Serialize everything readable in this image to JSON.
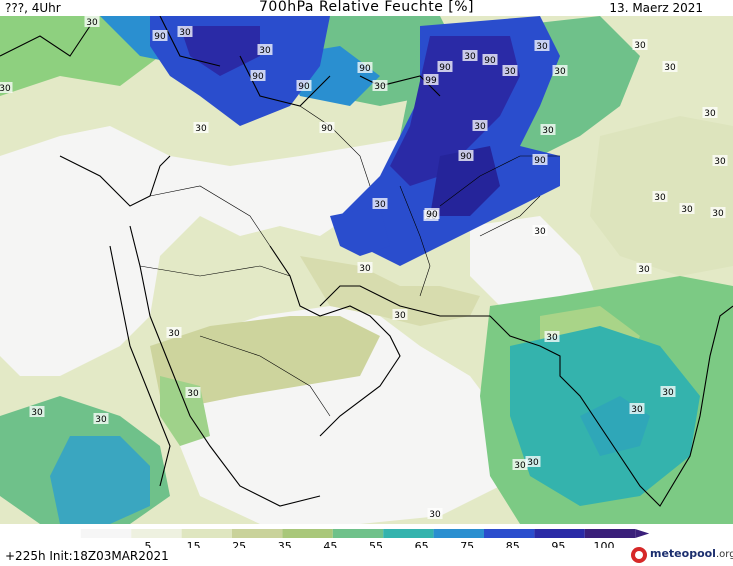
{
  "header": {
    "left": "???, 4Uhr",
    "title": "700hPa Relative Feuchte [%]",
    "date": "13. Maerz 2021"
  },
  "map": {
    "contour_labels": [
      "30",
      "90",
      "30",
      "30",
      "30",
      "90",
      "90",
      "90",
      "90",
      "30",
      "99",
      "90",
      "90",
      "30",
      "30",
      "30",
      "30",
      "90",
      "30",
      "90",
      "90",
      "30",
      "30",
      "30",
      "90",
      "30",
      "30",
      "30",
      "30",
      "30",
      "30",
      "30",
      "30",
      "30",
      "30",
      "30",
      "30",
      "30",
      "30",
      "30",
      "30",
      "30",
      "30",
      "30",
      "30",
      "30"
    ]
  },
  "colorbar": {
    "ticks": [
      "5",
      "15",
      "25",
      "35",
      "45",
      "55",
      "65",
      "75",
      "85",
      "95",
      "100"
    ],
    "colors": [
      "#f6f6f6",
      "#eef1e0",
      "#dfe6c0",
      "#c9d29a",
      "#a9c77a",
      "#6fc18a",
      "#34b3ad",
      "#2a8fd0",
      "#2a4dcd",
      "#2a2aa6",
      "#3a1f7a"
    ]
  },
  "footer": {
    "init": "+225h  Init:18Z03MAR2021",
    "logo_main": "meteopool",
    "logo_suffix": ".org"
  }
}
